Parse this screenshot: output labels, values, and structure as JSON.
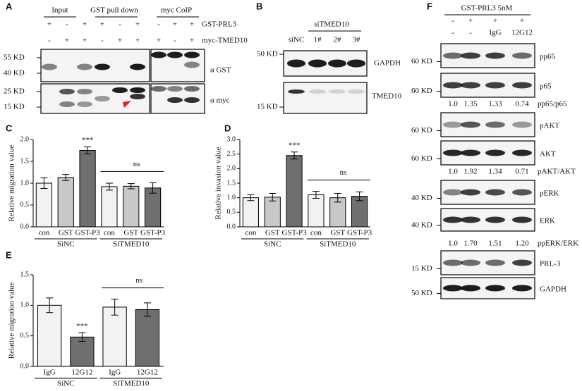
{
  "panel_labels": [
    "A",
    "B",
    "C",
    "D",
    "E",
    "F"
  ],
  "blot_a": {
    "lane_groups": [
      "Input",
      "GST pull down",
      "myc CoIP"
    ],
    "rows": [
      {
        "name": "GST-PRL3",
        "signs": [
          "+",
          "-",
          "+",
          "+",
          "-",
          "+",
          "-",
          "+",
          "+"
        ]
      },
      {
        "name": "myc-TMED10",
        "signs": [
          "-",
          "+",
          "+",
          "-",
          "+",
          "+",
          "+",
          "-",
          "+"
        ]
      }
    ],
    "markers": [
      "55 KD",
      "40 KD",
      "25 KD",
      "15 KD"
    ],
    "antibodies": [
      "α GST",
      "α myc"
    ]
  },
  "blot_b": {
    "header": "siTMED10",
    "lanes": [
      "siNC",
      "1#",
      "2#",
      "3#"
    ],
    "markers": [
      "50 KD",
      "15 KD"
    ],
    "targets": [
      "GAPDH",
      "TMED10"
    ]
  },
  "blot_f": {
    "header": "GST-PRL3 5nM",
    "rows": [
      [
        "-",
        "+",
        "+",
        "+"
      ],
      [
        "-",
        "-",
        "IgG",
        "12G12"
      ]
    ],
    "blots": [
      {
        "target": "pp65",
        "marker": "60 KD"
      },
      {
        "target": "p65",
        "marker": "60 KD"
      },
      {
        "target": "pAKT",
        "marker": "60 KD"
      },
      {
        "target": "AKT",
        "marker": "60 KD"
      },
      {
        "target": "pERK",
        "marker": "40 KD"
      },
      {
        "target": "ERK",
        "marker": "40 KD"
      },
      {
        "target": "PRL-3",
        "marker": "15 KD"
      },
      {
        "target": "GAPDH",
        "marker": "50 KD"
      }
    ],
    "ratios": [
      {
        "values": [
          "1.0",
          "1.35",
          "1.33",
          "0.74"
        ],
        "label": "pp65/p65"
      },
      {
        "values": [
          "1.0",
          "1.92",
          "1.34",
          "0.71"
        ],
        "label": "pAKT/AKT"
      },
      {
        "values": [
          "1.0",
          "1.70",
          "1.51",
          "1.20"
        ],
        "label": "ppERK/ERK"
      }
    ]
  },
  "chart_data": [
    {
      "type": "bar",
      "y_label": "Relative  migration value",
      "categories": [
        "con",
        "GST",
        "GST-P3",
        "con",
        "GST",
        "GST-P3"
      ],
      "groups": [
        "SiNC",
        "SiTMED10"
      ],
      "values": [
        1.0,
        1.13,
        1.75,
        0.92,
        0.93,
        0.89
      ],
      "errors": [
        0.12,
        0.07,
        0.08,
        0.08,
        0.06,
        0.12
      ],
      "colors": [
        "#f2f2f2",
        "#c8c8c8",
        "#6f6f6f",
        "#f2f2f2",
        "#c8c8c8",
        "#6f6f6f"
      ],
      "ylim": [
        0,
        2
      ],
      "yticks": [
        {
          "value": 0,
          "label": "0.0"
        },
        0.5,
        {
          "value": 1,
          "label": "1.0"
        },
        1.5,
        {
          "value": 2,
          "label": "2.0"
        }
      ],
      "annotations": [
        "***",
        "ns"
      ]
    },
    {
      "type": "bar",
      "y_label": "Relative invasion value",
      "categories": [
        "con",
        "GST",
        "GST-P3",
        "con",
        "GST",
        "GST-P3"
      ],
      "groups": [
        "SiNC",
        "SiTMED10"
      ],
      "values": [
        1.0,
        1.02,
        2.45,
        1.1,
        1.0,
        1.05
      ],
      "errors": [
        0.1,
        0.13,
        0.12,
        0.12,
        0.15,
        0.15
      ],
      "colors": [
        "#f2f2f2",
        "#c8c8c8",
        "#6f6f6f",
        "#f2f2f2",
        "#c8c8c8",
        "#6f6f6f"
      ],
      "ylim": [
        0,
        3
      ],
      "yticks": [
        {
          "value": 0,
          "label": "0.0"
        },
        0.5,
        {
          "value": 1,
          "label": "1.0"
        },
        1.5,
        {
          "value": 2,
          "label": "2.0"
        },
        2.5,
        {
          "value": 3,
          "label": "3.0"
        }
      ],
      "annotations": [
        "***",
        "ns"
      ]
    },
    {
      "type": "bar",
      "y_label": "Relative  migration value",
      "categories": [
        "IgG",
        "12G12",
        "IgG",
        "12G12"
      ],
      "groups": [
        "SiNC",
        "SiTMED10"
      ],
      "values": [
        1.0,
        0.48,
        0.97,
        0.93
      ],
      "errors": [
        0.12,
        0.07,
        0.13,
        0.11
      ],
      "colors": [
        "#f2f2f2",
        "#6f6f6f",
        "#f2f2f2",
        "#6f6f6f"
      ],
      "ylim": [
        0,
        1.5
      ],
      "yticks": [
        {
          "value": 0,
          "label": "0.0"
        },
        0.5,
        {
          "value": 1,
          "label": "1.0"
        },
        1.5
      ],
      "annotations": [
        "***",
        "ns"
      ]
    }
  ]
}
